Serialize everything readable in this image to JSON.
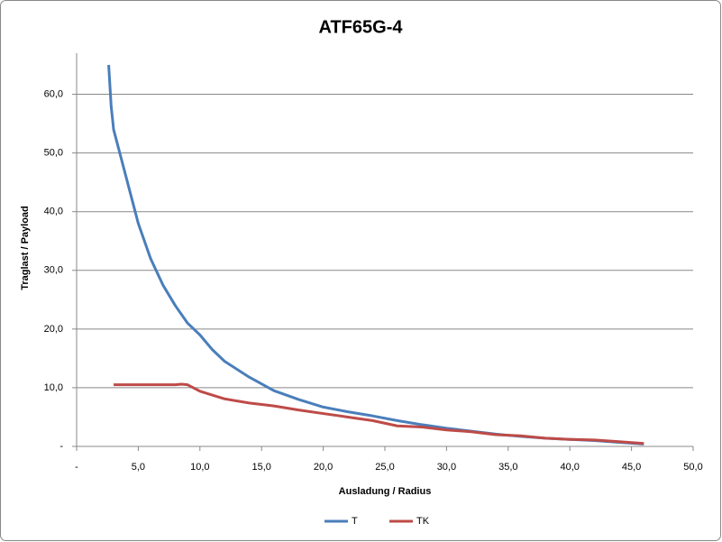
{
  "chart_data": {
    "type": "line",
    "title": "ATF65G-4",
    "x_label": "Ausladung / Radius",
    "y_label": "Traglast / Payload",
    "xlim": [
      0,
      50
    ],
    "ylim": [
      0,
      67
    ],
    "xticks": [
      {
        "value": 0,
        "label": "-"
      },
      {
        "value": 5,
        "label": "5,0"
      },
      {
        "value": 10,
        "label": "10,0"
      },
      {
        "value": 15,
        "label": "15,0"
      },
      {
        "value": 20,
        "label": "20,0"
      },
      {
        "value": 25,
        "label": "25,0"
      },
      {
        "value": 30,
        "label": "30,0"
      },
      {
        "value": 35,
        "label": "35,0"
      },
      {
        "value": 40,
        "label": "40,0"
      },
      {
        "value": 45,
        "label": "45,0"
      },
      {
        "value": 50,
        "label": "50,0"
      }
    ],
    "yticks": [
      {
        "value": 0,
        "label": "-"
      },
      {
        "value": 10,
        "label": "10,0"
      },
      {
        "value": 20,
        "label": "20,0"
      },
      {
        "value": 30,
        "label": "30,0"
      },
      {
        "value": 40,
        "label": "40,0"
      },
      {
        "value": 50,
        "label": "50,0"
      },
      {
        "value": 60,
        "label": "60,0"
      }
    ],
    "grid": true,
    "legend": "bottom",
    "series": [
      {
        "name": "T",
        "color": "#4a7ebb",
        "x": [
          2.6,
          2.8,
          3,
          3.5,
          4,
          4.5,
          5,
          6,
          7,
          8,
          9,
          10,
          11,
          12,
          14,
          16,
          18,
          20,
          22,
          24,
          26,
          28,
          30,
          32,
          34,
          36,
          38,
          40,
          42,
          44,
          46
        ],
        "values": [
          65,
          58,
          54,
          50,
          46,
          42,
          38,
          32,
          27.5,
          24,
          21,
          19,
          16.5,
          14.5,
          11.8,
          9.5,
          8,
          6.7,
          5.9,
          5.2,
          4.4,
          3.7,
          3.1,
          2.6,
          2.1,
          1.7,
          1.4,
          1.2,
          1,
          0.7,
          0.4
        ]
      },
      {
        "name": "TK",
        "color": "#be4b48",
        "x": [
          3,
          8,
          8.5,
          9,
          10,
          12,
          14,
          16,
          18,
          20,
          22,
          24,
          26,
          28,
          30,
          32,
          34,
          36,
          38,
          40,
          42,
          44,
          46
        ],
        "values": [
          10.5,
          10.5,
          10.6,
          10.5,
          9.4,
          8.1,
          7.4,
          6.9,
          6.2,
          5.6,
          5,
          4.4,
          3.5,
          3.3,
          2.8,
          2.5,
          2,
          1.8,
          1.4,
          1.2,
          1.1,
          0.8,
          0.5
        ]
      }
    ]
  }
}
